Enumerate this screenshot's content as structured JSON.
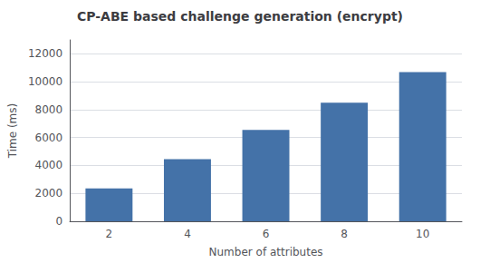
{
  "chart_data": {
    "type": "bar",
    "title": "CP-ABE based challenge generation (encrypt)",
    "xlabel": "Number of attributes",
    "ylabel": "Time (ms)",
    "categories": [
      2,
      4,
      6,
      8,
      10
    ],
    "values": [
      2350,
      4450,
      6550,
      8500,
      10700
    ],
    "color": "#4472A8",
    "ylim": [
      0,
      13000
    ],
    "yticks": [
      0,
      2000,
      4000,
      6000,
      8000,
      10000,
      12000
    ],
    "grid": true
  }
}
